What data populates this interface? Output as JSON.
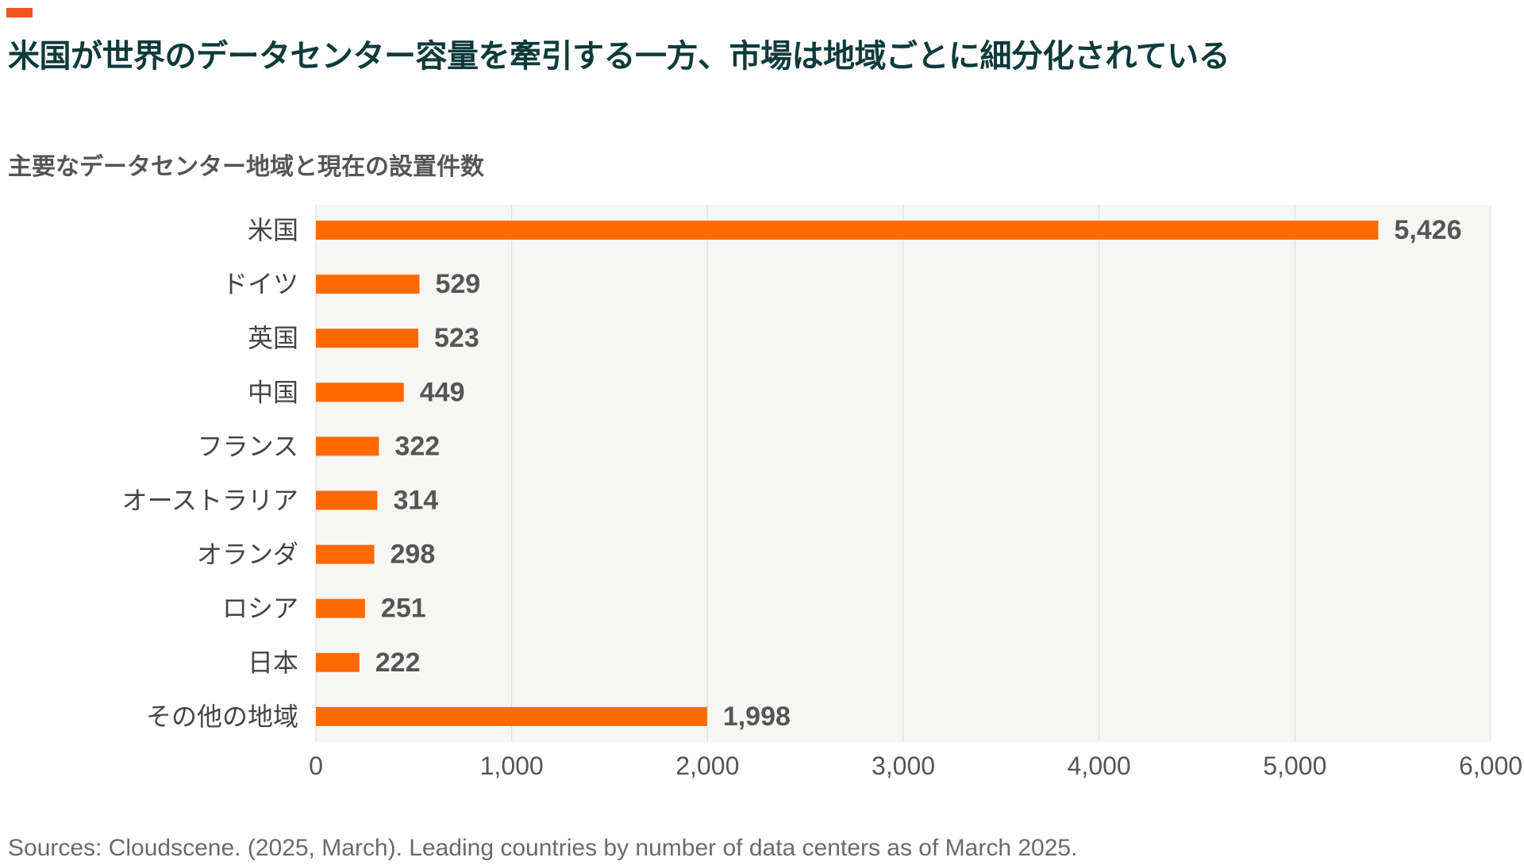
{
  "header": {
    "title": "米国が世界のデータセンター容量を牽引する一方、市場は地域ごとに細分化されている",
    "subtitle": "主要なデータセンター地域と現在の設置件数"
  },
  "footer": {
    "source": "Sources: Cloudscene. (2025, March). Leading countries by number of data centers as of March 2025."
  },
  "colors": {
    "accent": "#f0531c",
    "bar": "#ff6a00",
    "plot_bg": "#f6f7f4",
    "grid": "#dcdcdc",
    "title": "#0e3a3b"
  },
  "chart_data": {
    "type": "bar",
    "orientation": "horizontal",
    "categories": [
      "米国",
      "ドイツ",
      "英国",
      "中国",
      "フランス",
      "オーストラリア",
      "オランダ",
      "ロシア",
      "日本",
      "その他の地域"
    ],
    "values": [
      5426,
      529,
      523,
      449,
      322,
      314,
      298,
      251,
      222,
      1998
    ],
    "value_labels": [
      "5,426",
      "529",
      "523",
      "449",
      "322",
      "314",
      "298",
      "251",
      "222",
      "1,998"
    ],
    "xlim": [
      0,
      6000
    ],
    "x_ticks": [
      0,
      1000,
      2000,
      3000,
      4000,
      5000,
      6000
    ],
    "x_tick_labels": [
      "0",
      "1,000",
      "2,000",
      "3,000",
      "4,000",
      "5,000",
      "6,000"
    ],
    "grid": "vertical",
    "xlabel": "",
    "ylabel": ""
  }
}
